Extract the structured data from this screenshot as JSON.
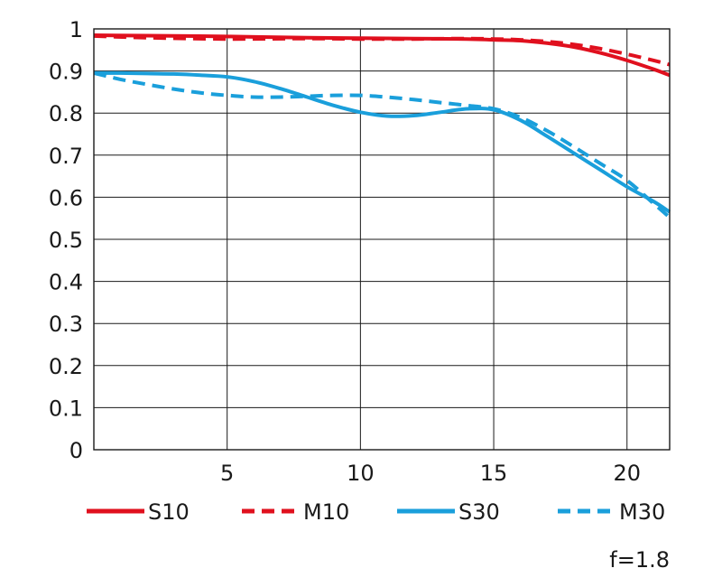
{
  "chart_data": {
    "type": "line",
    "title": "",
    "xlabel": "",
    "ylabel": "",
    "xlim": [
      0,
      21.6
    ],
    "ylim": [
      0,
      1
    ],
    "x_ticks": [
      5,
      10,
      15,
      20
    ],
    "x_tick_labels": [
      "5",
      "10",
      "15",
      "20"
    ],
    "y_ticks": [
      0,
      0.1,
      0.2,
      0.3,
      0.4,
      0.5,
      0.6,
      0.7,
      0.8,
      0.9,
      1
    ],
    "y_tick_labels": [
      "0",
      "0.1",
      "0.2",
      "0.3",
      "0.4",
      "0.5",
      "0.6",
      "0.7",
      "0.8",
      "0.9",
      "1"
    ],
    "grid": true,
    "legend_position": "bottom",
    "annotation": "f=1.8",
    "series": [
      {
        "name": "S10",
        "color": "#e0101e",
        "style": "solid",
        "x": [
          0,
          2,
          5,
          8,
          10,
          12,
          14,
          15,
          16,
          17,
          18,
          19,
          20,
          21,
          21.6
        ],
        "y": [
          0.985,
          0.984,
          0.982,
          0.979,
          0.978,
          0.977,
          0.976,
          0.974,
          0.972,
          0.966,
          0.957,
          0.943,
          0.925,
          0.904,
          0.89
        ]
      },
      {
        "name": "M10",
        "color": "#e0101e",
        "style": "dashed",
        "x": [
          0,
          2,
          5,
          8,
          10,
          12,
          14,
          15,
          16,
          17,
          18,
          19,
          20,
          21,
          21.6
        ],
        "y": [
          0.983,
          0.979,
          0.976,
          0.977,
          0.976,
          0.976,
          0.977,
          0.976,
          0.974,
          0.97,
          0.963,
          0.953,
          0.94,
          0.925,
          0.915
        ]
      },
      {
        "name": "S30",
        "color": "#1a9fdb",
        "style": "solid",
        "x": [
          0,
          1,
          2,
          3,
          4,
          5,
          6,
          7,
          8,
          9,
          10,
          11,
          12,
          13,
          14,
          15,
          16,
          17,
          18,
          19,
          20,
          21,
          21.6
        ],
        "y": [
          0.895,
          0.895,
          0.894,
          0.893,
          0.89,
          0.886,
          0.875,
          0.858,
          0.838,
          0.818,
          0.802,
          0.793,
          0.794,
          0.802,
          0.81,
          0.808,
          0.783,
          0.745,
          0.705,
          0.665,
          0.625,
          0.59,
          0.565
        ]
      },
      {
        "name": "M30",
        "color": "#1a9fdb",
        "style": "dashed",
        "x": [
          0,
          1,
          2,
          3,
          4,
          5,
          6,
          7,
          8,
          9,
          10,
          11,
          12,
          13,
          14,
          15,
          16,
          17,
          18,
          19,
          20,
          21,
          21.6
        ],
        "y": [
          0.895,
          0.88,
          0.868,
          0.857,
          0.848,
          0.842,
          0.838,
          0.838,
          0.84,
          0.842,
          0.842,
          0.838,
          0.832,
          0.825,
          0.818,
          0.81,
          0.79,
          0.758,
          0.72,
          0.68,
          0.64,
          0.585,
          0.552
        ]
      }
    ]
  }
}
